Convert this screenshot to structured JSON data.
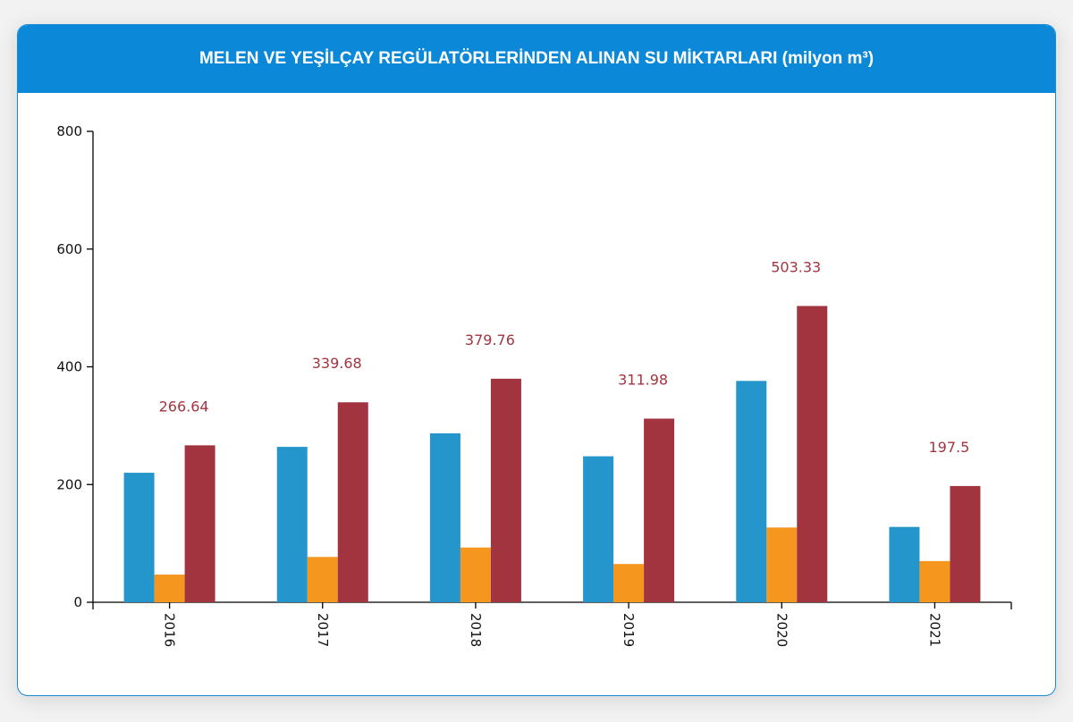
{
  "chart_data": {
    "type": "bar",
    "title": "MELEN VE YEŞİLÇAY REGÜLATÖRLERİNDEN ALINAN SU MİKTARLARI (milyon m³)",
    "categories": [
      "2016",
      "2017",
      "2018",
      "2019",
      "2020",
      "2021"
    ],
    "series": [
      {
        "values": [
          220,
          264,
          287,
          248,
          376,
          128
        ],
        "color": "#2596cb"
      },
      {
        "values": [
          47,
          77,
          93,
          65,
          127,
          70
        ],
        "color": "#f5961e"
      },
      {
        "values": [
          266.64,
          339.68,
          379.76,
          311.98,
          503.33,
          197.5
        ],
        "color": "#a2343f",
        "labels": [
          "266.64",
          "339.68",
          "379.76",
          "311.98",
          "503.33",
          "197.5"
        ]
      }
    ],
    "ylim": [
      0,
      800
    ],
    "yticks": [
      "0",
      "200",
      "400",
      "600",
      "800"
    ],
    "grid": false,
    "xlabel": "",
    "ylabel": ""
  }
}
